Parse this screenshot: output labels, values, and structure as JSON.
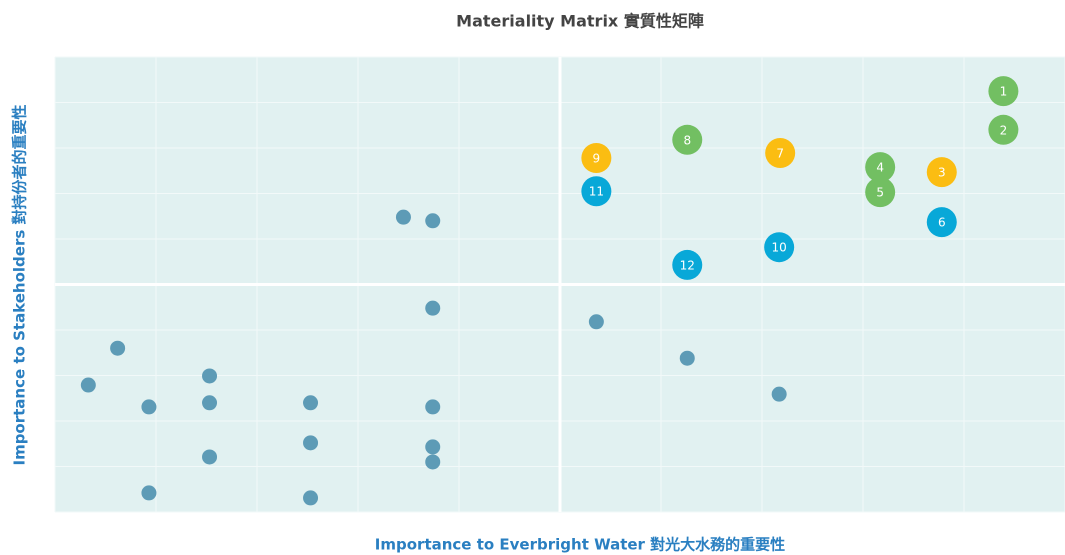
{
  "chart_data": {
    "type": "scatter",
    "title": "Materiality Matrix 實質性矩陣",
    "x_label": "Importance to Everbright Water 對光大水務的重要性",
    "y_label": "Importance to Stakeholders 對持份者的重要性",
    "xlim": [
      0,
      10
    ],
    "ylim": [
      0,
      10
    ],
    "xticks": [
      0,
      1,
      2,
      3,
      4,
      5,
      6,
      7,
      8,
      9,
      10
    ],
    "yticks": [
      0,
      1,
      2,
      3,
      4,
      5,
      6,
      7,
      8,
      9,
      10
    ],
    "grid": true,
    "dividers": {
      "x": 5,
      "y": 5
    },
    "series": [
      {
        "color": "#72bf62",
        "labels": [
          1,
          2,
          4,
          5,
          8
        ],
        "x": [
          9.39,
          9.39,
          8.17,
          8.17,
          6.26
        ],
        "y": [
          9.25,
          8.4,
          7.58,
          7.03,
          8.18
        ]
      },
      {
        "color": "#fbbd12",
        "labels": [
          3,
          7,
          9
        ],
        "x": [
          8.78,
          7.18,
          5.36
        ],
        "y": [
          7.47,
          7.89,
          7.78
        ]
      },
      {
        "color": "#08a8d8",
        "labels": [
          6,
          10,
          11,
          12
        ],
        "x": [
          8.78,
          7.17,
          5.36,
          6.26
        ],
        "y": [
          6.37,
          5.82,
          7.05,
          5.43
        ]
      },
      {
        "color": "#5d9bb6",
        "x": [
          3.45,
          3.74,
          3.74,
          5.36,
          0.62,
          6.26,
          1.53,
          0.33,
          7.17,
          0.93,
          1.53,
          2.53,
          3.74,
          2.53,
          3.74,
          1.53,
          3.74,
          0.93,
          2.53
        ],
        "y": [
          6.48,
          6.4,
          4.48,
          4.18,
          3.6,
          3.38,
          2.99,
          2.79,
          2.59,
          2.31,
          2.4,
          2.4,
          2.31,
          1.52,
          1.43,
          1.21,
          1.1,
          0.42,
          0.31
        ]
      }
    ]
  }
}
